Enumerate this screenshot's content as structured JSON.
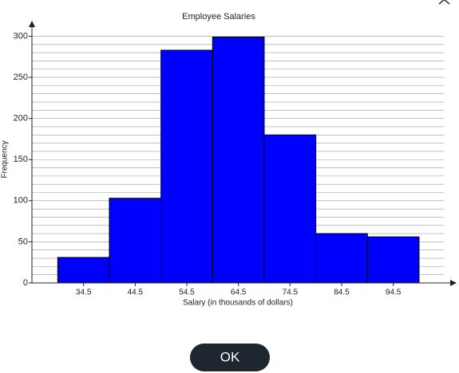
{
  "chart_data": {
    "type": "histogram",
    "title": "Employee Salaries",
    "x_label": "Salary (in thousands of dollars)",
    "y_label": "Frequency",
    "bins": [
      29.5,
      39.5,
      49.5,
      59.5,
      69.5,
      79.5,
      89.5,
      99.5
    ],
    "values": [
      31,
      103,
      283,
      299,
      180,
      60,
      56
    ],
    "color": "#0000ff",
    "xlim": [
      24.5,
      106
    ],
    "xticks": [
      34.5,
      44.5,
      54.5,
      64.5,
      74.5,
      84.5,
      94.5
    ],
    "ylim": [
      0,
      315
    ],
    "yticks": [
      0,
      50,
      100,
      150,
      200,
      250,
      300
    ],
    "minor_yticks": [
      10,
      20,
      30,
      40,
      60,
      70,
      80,
      90,
      110,
      120,
      130,
      140,
      160,
      170,
      180,
      190,
      210,
      220,
      230,
      240,
      260,
      270,
      280,
      290
    ],
    "grid": true
  },
  "button": {
    "label": "OK"
  }
}
